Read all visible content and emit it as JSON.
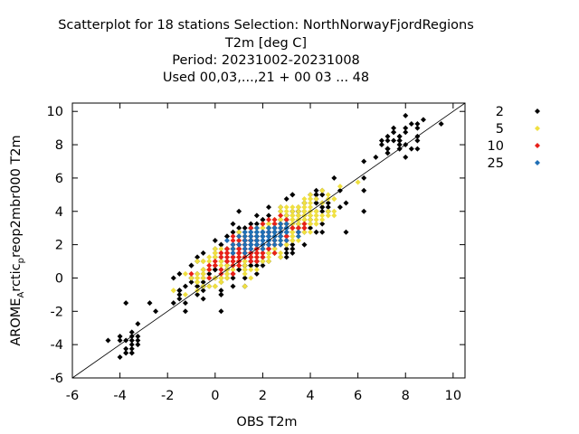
{
  "chart_data": {
    "type": "scatter",
    "title_lines": [
      "Scatterplot for   18 stations Selection: NorthNorwayFjordRegions",
      "T2m [deg C]",
      "Period: 20231002-20231008",
      "Used  00,03,...,21  + 00 03 ... 48"
    ],
    "xlabel": "OBS T2m",
    "ylabel_main": "AROME",
    "ylabel_sub": "A",
    "ylabel_mid": "rctic",
    "ylabel_sub2": "p",
    "ylabel_rest": "reop2mbr000 T2m",
    "xlim": [
      -6,
      10.5
    ],
    "ylim": [
      -6,
      10.5
    ],
    "x_ticks": [
      "-6",
      "-4",
      "-2",
      "0",
      "2",
      "4",
      "6",
      "8",
      "10"
    ],
    "y_ticks": [
      "-6",
      "-4",
      "-2",
      "0",
      "2",
      "4",
      "6",
      "8",
      "10"
    ],
    "diagonal": true,
    "grid": false,
    "legend_position": "outside-right",
    "series": [
      {
        "name": "2",
        "color": "#000000",
        "clusters": [
          {
            "cx": 1.8,
            "cy": 2.0,
            "sx": 2.9,
            "sy": 2.7,
            "rho": 0.85,
            "n": 420
          },
          {
            "cx": 7.8,
            "cy": 8.2,
            "sx": 1.2,
            "sy": 1.2,
            "rho": 0.4,
            "n": 40
          },
          {
            "cx": -3.6,
            "cy": -3.8,
            "sx": 0.5,
            "sy": 0.9,
            "rho": 0.3,
            "n": 20
          }
        ]
      },
      {
        "name": "5",
        "color": "#f0e040",
        "clusters": [
          {
            "cx": 2.0,
            "cy": 2.2,
            "sx": 2.3,
            "sy": 2.1,
            "rho": 0.88,
            "n": 560
          }
        ]
      },
      {
        "name": "10",
        "color": "#e8201a",
        "clusters": [
          {
            "cx": 1.7,
            "cy": 2.0,
            "sx": 1.3,
            "sy": 1.1,
            "rho": 0.75,
            "n": 320
          }
        ]
      },
      {
        "name": "25",
        "color": "#1f6fb5",
        "clusters": [
          {
            "cx": 2.0,
            "cy": 2.4,
            "sx": 0.9,
            "sy": 0.6,
            "rho": 0.55,
            "n": 170
          }
        ]
      }
    ]
  }
}
